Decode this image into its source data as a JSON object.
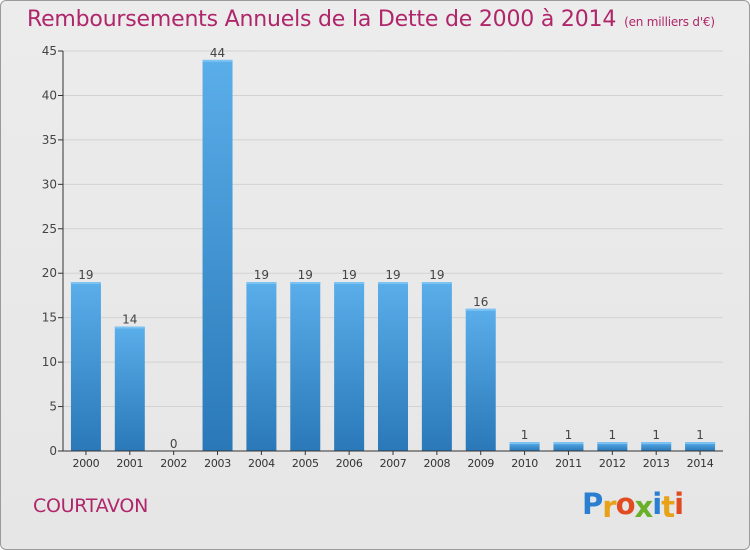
{
  "header": {
    "title": "Remboursements Annuels de la Dette de 2000 à 2014",
    "unit": "(en milliers d'€)"
  },
  "footer": {
    "commune": "COURTAVON",
    "brand_letters": [
      "P",
      "r",
      "o",
      "x",
      "i",
      "t",
      "i"
    ],
    "brand_colors": [
      "#2a7fd0",
      "#e8a21a",
      "#e04b21",
      "#6ab02a",
      "#2a7fd0",
      "#e8a21a",
      "#e04b21"
    ]
  },
  "colors": {
    "title": "#b0266a",
    "bar_light": "#5aaeea",
    "bar_dark": "#2a78b8",
    "grid": "#d2d2d2",
    "axis": "#333333"
  },
  "chart_data": {
    "type": "bar",
    "categories": [
      "2000",
      "2001",
      "2002",
      "2003",
      "2004",
      "2005",
      "2006",
      "2007",
      "2008",
      "2009",
      "2010",
      "2011",
      "2012",
      "2013",
      "2014"
    ],
    "values": [
      19,
      14,
      0,
      44,
      19,
      19,
      19,
      19,
      19,
      16,
      1,
      1,
      1,
      1,
      1
    ],
    "data_labels": [
      "19",
      "14",
      "0",
      "44",
      "19",
      "19",
      "19",
      "19",
      "19",
      "16",
      "1",
      "1",
      "1",
      "1",
      "1"
    ],
    "yticks": [
      0,
      5,
      10,
      15,
      20,
      25,
      30,
      35,
      40,
      45
    ],
    "ylim": [
      0,
      45
    ],
    "title": "Remboursements Annuels de la Dette de 2000 à 2014",
    "xlabel": "",
    "ylabel": "",
    "grid": true
  }
}
